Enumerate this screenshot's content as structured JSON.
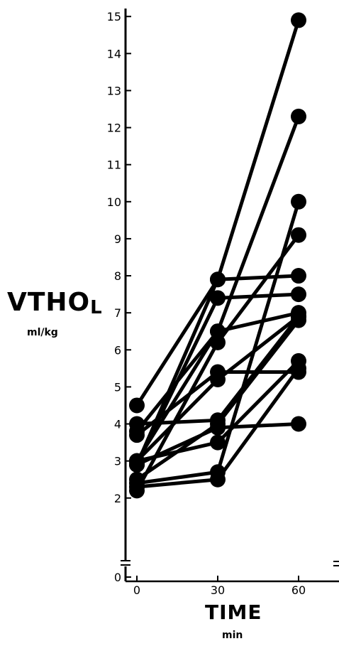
{
  "chart_data": {
    "type": "line",
    "ylabel": "VTHO",
    "ylabel_subscript": "L",
    "ylabel_unit": "ml/kg",
    "xlabel": "TIME",
    "xlabel_unit": "min",
    "x_ticks": [
      0,
      30,
      60
    ],
    "x_tick_labels": [
      "0",
      "30",
      "60"
    ],
    "y_ticks": [
      0,
      2,
      3,
      4,
      5,
      6,
      7,
      8,
      9,
      10,
      11,
      12,
      13,
      14,
      15
    ],
    "y_tick_labels": [
      "0",
      "2",
      "3",
      "4",
      "5",
      "6",
      "7",
      "8",
      "9",
      "10",
      "11",
      "12",
      "13",
      "14",
      "15"
    ],
    "ylim": [
      0,
      15.1
    ],
    "xlim": [
      -2,
      75
    ],
    "axis_break": true,
    "grid": false,
    "marker_color": "#000000",
    "series": [
      {
        "x": [
          0,
          30,
          60
        ],
        "y": [
          2.9,
          7.9,
          14.9
        ]
      },
      {
        "x": [
          0,
          30,
          60
        ],
        "y": [
          3.0,
          6.5,
          12.3
        ]
      },
      {
        "x": [
          0,
          30,
          60
        ],
        "y": [
          2.4,
          2.7,
          10.0
        ]
      },
      {
        "x": [
          0,
          30,
          60
        ],
        "y": [
          2.2,
          6.2,
          9.1
        ]
      },
      {
        "x": [
          0,
          30,
          60
        ],
        "y": [
          4.5,
          7.9,
          8.0
        ]
      },
      {
        "x": [
          0,
          30,
          60
        ],
        "y": [
          2.9,
          7.4,
          7.5
        ]
      },
      {
        "x": [
          0,
          30,
          60
        ],
        "y": [
          3.8,
          6.5,
          7.0
        ]
      },
      {
        "x": [
          0,
          30,
          60
        ],
        "y": [
          3.0,
          5.2,
          6.9
        ]
      },
      {
        "x": [
          0,
          30,
          60
        ],
        "y": [
          4.0,
          4.1,
          6.9
        ]
      },
      {
        "x": [
          0,
          30,
          60
        ],
        "y": [
          2.5,
          4.0,
          6.8
        ]
      },
      {
        "x": [
          0,
          30,
          60
        ],
        "y": [
          3.0,
          3.5,
          5.7
        ]
      },
      {
        "x": [
          0,
          30,
          60
        ],
        "y": [
          3.7,
          5.4,
          5.4
        ]
      },
      {
        "x": [
          0,
          30,
          60
        ],
        "y": [
          2.3,
          2.5,
          5.5
        ]
      },
      {
        "x": [
          0,
          30,
          60
        ],
        "y": [
          2.9,
          3.9,
          4.0
        ]
      }
    ]
  }
}
